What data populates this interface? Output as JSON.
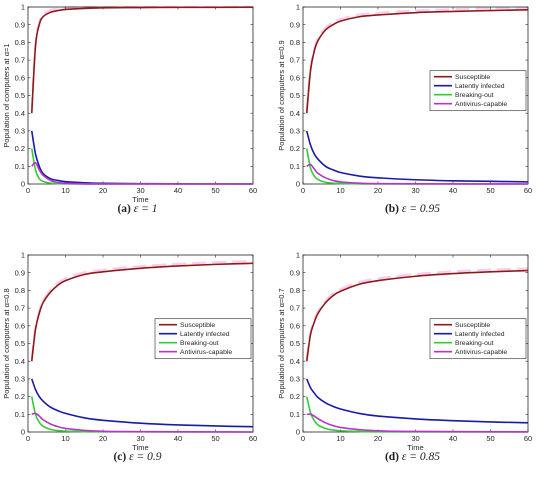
{
  "colors": {
    "Susceptible": "#8b1a1a",
    "Latently infected": "#1a1aa8",
    "Breaking-out": "#33cc33",
    "Antivirus-capable": "#b833cc",
    "artifact": "#ff66cc"
  },
  "chart_data": [
    {
      "type": "line",
      "caption_tag": "(a)",
      "caption_expr": "ε = 1",
      "xlabel": "Time",
      "ylabel": "Population of computers at α=1",
      "xlim": [
        0,
        60
      ],
      "ylim": [
        0,
        1
      ],
      "xticks": [
        "0",
        "10",
        "20",
        "30",
        "40",
        "50",
        "60"
      ],
      "yticks": [
        "0",
        "0.1",
        "0.2",
        "0.3",
        "0.4",
        "0.5",
        "0.6",
        "0.7",
        "0.8",
        "0.9",
        "1"
      ],
      "legend_position": "none",
      "series": [
        {
          "name": "Susceptible",
          "x": [
            1,
            2,
            3,
            4,
            6,
            8,
            10,
            15,
            20,
            30,
            40,
            60
          ],
          "values": [
            0.4,
            0.78,
            0.9,
            0.945,
            0.97,
            0.98,
            0.986,
            0.992,
            0.995,
            0.997,
            0.998,
            0.999
          ]
        },
        {
          "name": "Latently infected",
          "x": [
            1,
            2,
            3,
            4,
            6,
            8,
            10,
            15,
            20,
            30,
            40,
            60
          ],
          "values": [
            0.3,
            0.17,
            0.1,
            0.06,
            0.03,
            0.02,
            0.013,
            0.007,
            0.004,
            0.002,
            0.001,
            0.0005
          ]
        },
        {
          "name": "Breaking-out",
          "x": [
            1,
            2,
            3,
            4,
            6,
            8,
            10,
            15,
            20,
            60
          ],
          "values": [
            0.2,
            0.08,
            0.03,
            0.015,
            0.005,
            0.002,
            0.001,
            0.0,
            0.0,
            0.0
          ]
        },
        {
          "name": "Antivirus-capable",
          "x": [
            1,
            2,
            3,
            4,
            6,
            8,
            10,
            15,
            20,
            60
          ],
          "values": [
            0.1,
            0.12,
            0.08,
            0.05,
            0.02,
            0.008,
            0.004,
            0.001,
            0.0,
            0.0
          ]
        }
      ]
    },
    {
      "type": "line",
      "caption_tag": "(b)",
      "caption_expr": "ε = 0.95",
      "xlabel": "",
      "ylabel": "Population of computers at α=0.9",
      "xlim": [
        0,
        60
      ],
      "ylim": [
        0,
        1
      ],
      "xticks": [
        "0",
        "10",
        "20",
        "30",
        "40",
        "50",
        "60"
      ],
      "yticks": [
        "0",
        "0.1",
        "0.2",
        "0.3",
        "0.4",
        "0.5",
        "0.6",
        "0.7",
        "0.8",
        "0.9",
        "1"
      ],
      "legend_position": "middle-right",
      "series": [
        {
          "name": "Susceptible",
          "x": [
            1,
            2,
            3,
            4,
            6,
            8,
            10,
            15,
            20,
            30,
            40,
            50,
            60
          ],
          "values": [
            0.4,
            0.64,
            0.75,
            0.81,
            0.87,
            0.9,
            0.92,
            0.945,
            0.955,
            0.968,
            0.975,
            0.98,
            0.984
          ]
        },
        {
          "name": "Latently infected",
          "x": [
            1,
            2,
            3,
            4,
            6,
            8,
            10,
            15,
            20,
            30,
            40,
            50,
            60
          ],
          "values": [
            0.3,
            0.22,
            0.17,
            0.14,
            0.1,
            0.08,
            0.065,
            0.045,
            0.035,
            0.024,
            0.018,
            0.015,
            0.012
          ]
        },
        {
          "name": "Breaking-out",
          "x": [
            1,
            2,
            3,
            4,
            6,
            8,
            10,
            15,
            20,
            60
          ],
          "values": [
            0.2,
            0.09,
            0.045,
            0.025,
            0.01,
            0.005,
            0.003,
            0.001,
            0.0,
            0.0
          ]
        },
        {
          "name": "Antivirus-capable",
          "x": [
            1,
            2,
            3,
            4,
            6,
            8,
            10,
            15,
            20,
            30,
            60
          ],
          "values": [
            0.1,
            0.11,
            0.085,
            0.06,
            0.035,
            0.02,
            0.012,
            0.005,
            0.002,
            0.001,
            0.0
          ]
        }
      ]
    },
    {
      "type": "line",
      "caption_tag": "(c)",
      "caption_expr": "ε = 0.9",
      "xlabel": "Time",
      "ylabel": "Population of computers at α=0.8",
      "xlim": [
        0,
        60
      ],
      "ylim": [
        0,
        1
      ],
      "xticks": [
        "0",
        "10",
        "20",
        "30",
        "40",
        "50",
        "60"
      ],
      "yticks": [
        "0",
        "0.1",
        "0.2",
        "0.3",
        "0.4",
        "0.5",
        "0.6",
        "0.7",
        "0.8",
        "0.9",
        "1"
      ],
      "legend_position": "middle-right",
      "series": [
        {
          "name": "Susceptible",
          "x": [
            1,
            2,
            3,
            4,
            6,
            8,
            10,
            15,
            20,
            30,
            40,
            50,
            60
          ],
          "values": [
            0.4,
            0.58,
            0.67,
            0.73,
            0.79,
            0.83,
            0.855,
            0.89,
            0.905,
            0.925,
            0.938,
            0.947,
            0.953
          ]
        },
        {
          "name": "Latently infected",
          "x": [
            1,
            2,
            3,
            4,
            6,
            8,
            10,
            15,
            20,
            30,
            40,
            50,
            60
          ],
          "values": [
            0.3,
            0.24,
            0.2,
            0.175,
            0.14,
            0.12,
            0.105,
            0.08,
            0.066,
            0.05,
            0.04,
            0.034,
            0.03
          ]
        },
        {
          "name": "Breaking-out",
          "x": [
            1,
            2,
            3,
            4,
            6,
            8,
            10,
            15,
            20,
            60
          ],
          "values": [
            0.2,
            0.1,
            0.055,
            0.033,
            0.015,
            0.008,
            0.005,
            0.002,
            0.001,
            0.0
          ]
        },
        {
          "name": "Antivirus-capable",
          "x": [
            1,
            2,
            3,
            4,
            6,
            8,
            10,
            15,
            20,
            30,
            60
          ],
          "values": [
            0.1,
            0.105,
            0.09,
            0.07,
            0.045,
            0.03,
            0.02,
            0.009,
            0.004,
            0.002,
            0.0
          ]
        }
      ]
    },
    {
      "type": "line",
      "caption_tag": "(d)",
      "caption_expr": "ε = 0.85",
      "xlabel": "Time",
      "ylabel": "Population of computers at α=0.7",
      "xlim": [
        0,
        60
      ],
      "ylim": [
        0,
        1
      ],
      "xticks": [
        "0",
        "10",
        "20",
        "30",
        "40",
        "50",
        "60"
      ],
      "yticks": [
        "0",
        "0.1",
        "0.2",
        "0.3",
        "0.4",
        "0.5",
        "0.6",
        "0.7",
        "0.8",
        "0.9",
        "1"
      ],
      "legend_position": "middle-right",
      "series": [
        {
          "name": "Susceptible",
          "x": [
            1,
            2,
            3,
            4,
            6,
            8,
            10,
            15,
            20,
            30,
            40,
            50,
            60
          ],
          "values": [
            0.4,
            0.55,
            0.62,
            0.67,
            0.73,
            0.77,
            0.795,
            0.835,
            0.855,
            0.88,
            0.895,
            0.905,
            0.912
          ]
        },
        {
          "name": "Latently infected",
          "x": [
            1,
            2,
            3,
            4,
            6,
            8,
            10,
            15,
            20,
            30,
            40,
            50,
            60
          ],
          "values": [
            0.3,
            0.25,
            0.22,
            0.195,
            0.165,
            0.145,
            0.13,
            0.105,
            0.09,
            0.074,
            0.064,
            0.057,
            0.052
          ]
        },
        {
          "name": "Breaking-out",
          "x": [
            1,
            2,
            3,
            4,
            6,
            8,
            10,
            15,
            20,
            60
          ],
          "values": [
            0.2,
            0.11,
            0.065,
            0.04,
            0.02,
            0.011,
            0.007,
            0.003,
            0.001,
            0.0
          ]
        },
        {
          "name": "Antivirus-capable",
          "x": [
            1,
            2,
            3,
            4,
            6,
            8,
            10,
            15,
            20,
            30,
            60
          ],
          "values": [
            0.1,
            0.1,
            0.09,
            0.075,
            0.052,
            0.036,
            0.026,
            0.013,
            0.007,
            0.003,
            0.001
          ]
        }
      ]
    }
  ]
}
